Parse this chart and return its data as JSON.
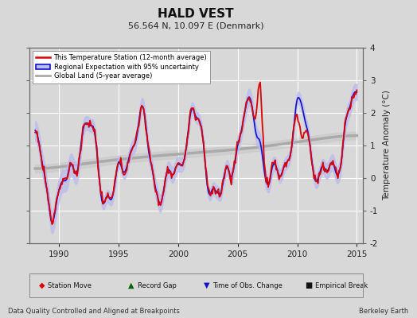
{
  "title": "HALD VEST",
  "subtitle": "56.564 N, 10.097 E (Denmark)",
  "ylabel": "Temperature Anomaly (°C)",
  "xlim": [
    1987.5,
    2015.5
  ],
  "ylim": [
    -2.0,
    4.0
  ],
  "yticks": [
    -2,
    -1,
    0,
    1,
    2,
    3,
    4
  ],
  "xticks": [
    1990,
    1995,
    2000,
    2005,
    2010,
    2015
  ],
  "bg_color": "#d8d8d8",
  "plot_bg_color": "#d8d8d8",
  "grid_color": "#ffffff",
  "station_color": "#dd0000",
  "regional_color": "#1111cc",
  "regional_fill_color": "#bbbbee",
  "global_color": "#aaaaaa",
  "global_fill_color": "#cccccc",
  "footer_left": "Data Quality Controlled and Aligned at Breakpoints",
  "footer_right": "Berkeley Earth",
  "legend_items": [
    "This Temperature Station (12-month average)",
    "Regional Expectation with 95% uncertainty",
    "Global Land (5-year average)"
  ],
  "marker_legend": [
    "Station Move",
    "Record Gap",
    "Time of Obs. Change",
    "Empirical Break"
  ]
}
